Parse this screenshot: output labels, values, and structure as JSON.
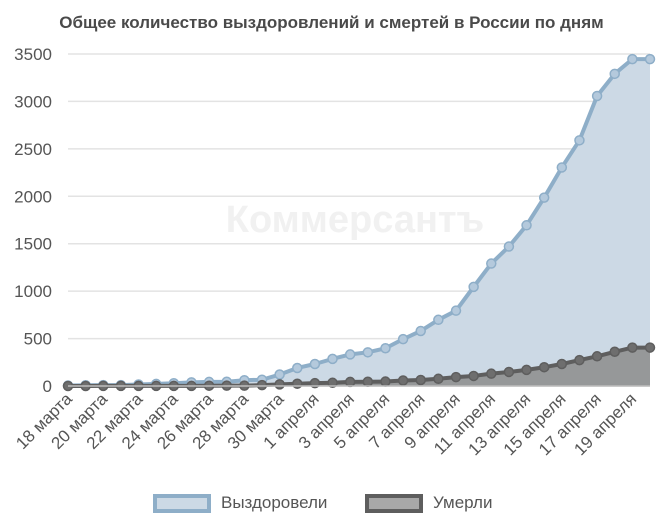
{
  "chart_data": {
    "type": "area",
    "title": "Общее количество выздоровлений и смертей в России по дням",
    "watermark": "Коммерсантъ",
    "xlabel": "",
    "ylabel": "",
    "ylim": [
      0,
      3500
    ],
    "yticks": [
      0,
      500,
      1000,
      1500,
      2000,
      2500,
      3000,
      3500
    ],
    "grid": true,
    "legend_position": "bottom",
    "x": [
      "18 марта",
      "19 марта",
      "20 марта",
      "21 марта",
      "22 марта",
      "23 марта",
      "24 марта",
      "25 марта",
      "26 марта",
      "27 марта",
      "28 марта",
      "29 марта",
      "30 марта",
      "31 марта",
      "1 апреля",
      "2 апреля",
      "3 апреля",
      "4 апреля",
      "5 апреля",
      "6 апреля",
      "7 апреля",
      "8 апреля",
      "9 апреля",
      "10 апреля",
      "11 апреля",
      "12 апреля",
      "13 апреля",
      "14 апреля",
      "15 апреля",
      "16 апреля",
      "17 апреля",
      "18 апреля",
      "19 апреля",
      "20 апреля"
    ],
    "xtick_labels": [
      "18 марта",
      "20 марта",
      "22 марта",
      "24 марта",
      "26 марта",
      "28 марта",
      "30 марта",
      "1 апреля",
      "3 апреля",
      "5 апреля",
      "7 апреля",
      "9 апреля",
      "11 апреля",
      "13 апреля",
      "15 апреля",
      "17 апреля",
      "19 апреля"
    ],
    "series": [
      {
        "name": "Выздоровели",
        "color": "#8eaec8",
        "fill": "#ccd9e5",
        "values": [
          5,
          8,
          9,
          9,
          16,
          22,
          29,
          38,
          43,
          45,
          61,
          66,
          121,
          190,
          232,
          286,
          333,
          355,
          398,
          494,
          580,
          698,
          794,
          1045,
          1291,
          1470,
          1694,
          1986,
          2304,
          2590,
          3057,
          3291,
          3446,
          3446
        ]
      },
      {
        "name": "Умерли",
        "color": "#5e5e5e",
        "fill": "#8c8c8c",
        "values": [
          0,
          0,
          1,
          1,
          1,
          1,
          1,
          1,
          3,
          4,
          4,
          9,
          17,
          24,
          30,
          34,
          43,
          45,
          47,
          58,
          63,
          76,
          94,
          106,
          130,
          148,
          170,
          198,
          232,
          273,
          313,
          361,
          405,
          405
        ]
      }
    ]
  }
}
